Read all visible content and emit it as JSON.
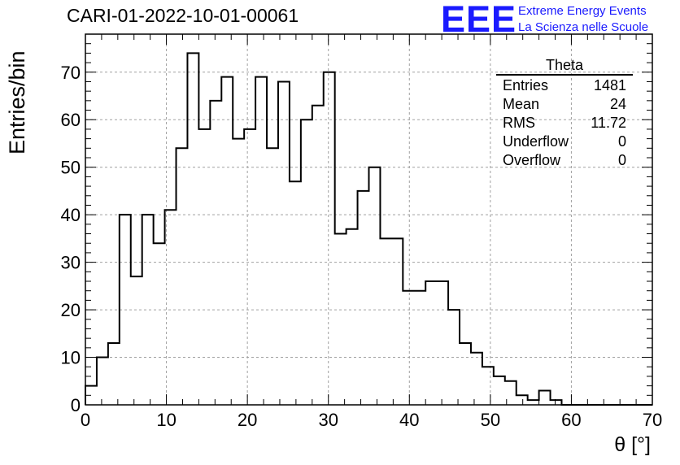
{
  "title": "CARI-01-2022-10-01-00061",
  "logo": {
    "mark": "EEE",
    "line1": "Extreme Energy Events",
    "line2": "La Scienza nelle Scuole",
    "color": "#1a1aff"
  },
  "stats": {
    "title": "Theta",
    "rows": [
      {
        "label": "Entries",
        "value": "1481"
      },
      {
        "label": "Mean",
        "value": "24"
      },
      {
        "label": "RMS",
        "value": "11.72"
      },
      {
        "label": "Underflow",
        "value": "0"
      },
      {
        "label": "Overflow",
        "value": "0"
      }
    ]
  },
  "chart_data": {
    "type": "bar",
    "style": "step-histogram",
    "xlabel": "θ [°]",
    "ylabel": "Entries/bin",
    "xlim": [
      0,
      70
    ],
    "ylim": [
      0,
      78
    ],
    "grid": true,
    "xticks": [
      0,
      10,
      20,
      30,
      40,
      50,
      60,
      70
    ],
    "yticks": [
      0,
      10,
      20,
      30,
      40,
      50,
      60,
      70
    ],
    "bin_width": 1.4,
    "values": [
      4,
      10,
      13,
      40,
      27,
      40,
      34,
      41,
      54,
      74,
      58,
      64,
      69,
      56,
      58,
      69,
      54,
      68,
      47,
      60,
      63,
      70,
      36,
      37,
      45,
      50,
      35,
      35,
      24,
      24,
      26,
      26,
      20,
      13,
      11,
      8,
      6,
      5,
      2,
      1,
      3,
      1,
      0,
      0,
      0,
      0,
      0,
      0,
      0,
      0
    ]
  }
}
